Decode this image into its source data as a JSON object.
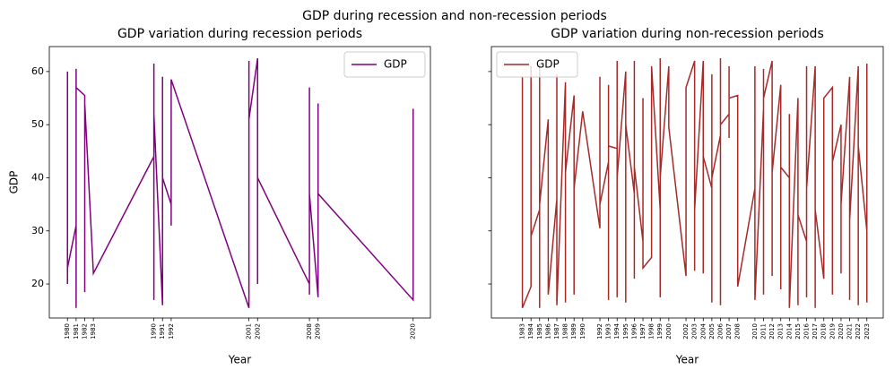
{
  "title": "GDP during recession and non-recession periods",
  "chart_data": [
    {
      "type": "line",
      "title": "GDP variation during recession periods",
      "xlabel": "Year",
      "ylabel": "GDP",
      "x": [
        1980,
        1980,
        1980,
        1980,
        1980,
        1981,
        1981,
        1981,
        1981,
        1982,
        1982,
        1982,
        1983,
        1990,
        1990,
        1990,
        1990,
        1990,
        1991,
        1991,
        1991,
        1992,
        1992,
        1992,
        2001,
        2001,
        2001,
        2001,
        2002,
        2002,
        2002,
        2002,
        2002,
        2002,
        2008,
        2008,
        2008,
        2008,
        2008,
        2009,
        2009,
        2009,
        2009,
        2020,
        2020,
        2020,
        2020
      ],
      "series": [
        {
          "name": "GDP",
          "color": "#800080",
          "values": [
            24,
            60,
            20,
            55,
            23,
            31,
            60.5,
            15.5,
            57,
            55.5,
            18.5,
            54,
            22,
            44,
            17,
            61.5,
            20,
            52,
            16,
            59,
            40,
            35,
            31,
            58.5,
            15.5,
            62,
            16,
            51,
            62.5,
            20,
            25.5,
            27,
            56,
            40,
            20,
            57,
            18,
            49,
            37,
            17.5,
            54,
            22,
            37,
            17,
            53,
            24,
            52
          ]
        }
      ],
      "xlim": [
        1977.9,
        2022
      ],
      "ylim": [
        13.6,
        64.7
      ],
      "xticks": [
        1980,
        1981,
        1982,
        1983,
        1990,
        1991,
        1992,
        2001,
        2002,
        2008,
        2009,
        2020
      ],
      "yticks": [
        20,
        30,
        40,
        50,
        60
      ],
      "legend": "upper right"
    },
    {
      "type": "line",
      "title": "GDP variation during non-recession periods",
      "xlabel": "Year",
      "sharey": true,
      "x": [
        1983,
        1983,
        1984,
        1984,
        1984,
        1985,
        1985,
        1985,
        1985,
        1986,
        1986,
        1987,
        1987,
        1987,
        1988,
        1988,
        1988,
        1989,
        1989,
        1989,
        1990,
        1992,
        1992,
        1992,
        1993,
        1993,
        1993,
        1993,
        1994,
        1994,
        1994,
        1994,
        1995,
        1995,
        1995,
        1996,
        1996,
        1996,
        1996,
        1997,
        1997,
        1997,
        1998,
        1998,
        1999,
        1999,
        1999,
        1999,
        2000,
        2000,
        2002,
        2002,
        2003,
        2003,
        2003,
        2004,
        2004,
        2004,
        2005,
        2005,
        2005,
        2005,
        2006,
        2006,
        2006,
        2006,
        2007,
        2007,
        2007,
        2007,
        2008,
        2008,
        2010,
        2010,
        2010,
        2011,
        2011,
        2011,
        2011,
        2012,
        2012,
        2012,
        2013,
        2013,
        2013,
        2014,
        2014,
        2014,
        2015,
        2015,
        2015,
        2016,
        2016,
        2016,
        2016,
        2017,
        2017,
        2017,
        2018,
        2018,
        2019,
        2019,
        2019,
        2020,
        2020,
        2020,
        2021,
        2021,
        2021,
        2022,
        2022,
        2022,
        2023,
        2023,
        2023
      ],
      "series": [
        {
          "name": "GDP",
          "color": "#a52a2a",
          "values": [
            59,
            15.5,
            19.5,
            61,
            29,
            34,
            61.5,
            15.5,
            35,
            51,
            18,
            36,
            59.5,
            16,
            58,
            16.5,
            41,
            55.5,
            18,
            38,
            52.5,
            30.5,
            59,
            35,
            43,
            57.5,
            17,
            46,
            45.5,
            62,
            17.5,
            40,
            60,
            16.5,
            50,
            37,
            62,
            21,
            42,
            28,
            55,
            23,
            25,
            61,
            34,
            62.5,
            17.5,
            40,
            61,
            49.5,
            21.5,
            57,
            62,
            22.5,
            34,
            62,
            22,
            44,
            38,
            59.5,
            16.5,
            40,
            48,
            62.5,
            16,
            50,
            52,
            61,
            47.5,
            55,
            55.5,
            19.5,
            38,
            61,
            17,
            53,
            60.5,
            18,
            55,
            62,
            21.5,
            41,
            57.5,
            19,
            42,
            40,
            52,
            15.5,
            55,
            16,
            33,
            28,
            61,
            17.5,
            38,
            61,
            15.5,
            34,
            21,
            55,
            57,
            18,
            43,
            50,
            22,
            35,
            59,
            17,
            32,
            61,
            16,
            46,
            30,
            61.5,
            16.5
          ]
        }
      ],
      "xlim": [
        1979.4,
        2024.9
      ],
      "xticks": [
        1983,
        1984,
        1985,
        1986,
        1987,
        1988,
        1989,
        1990,
        1992,
        1993,
        1994,
        1995,
        1996,
        1997,
        1998,
        1999,
        2000,
        2002,
        2003,
        2004,
        2005,
        2006,
        2007,
        2008,
        2010,
        2011,
        2012,
        2013,
        2014,
        2015,
        2016,
        2017,
        2018,
        2019,
        2020,
        2021,
        2022,
        2023
      ],
      "legend": "upper left"
    }
  ]
}
